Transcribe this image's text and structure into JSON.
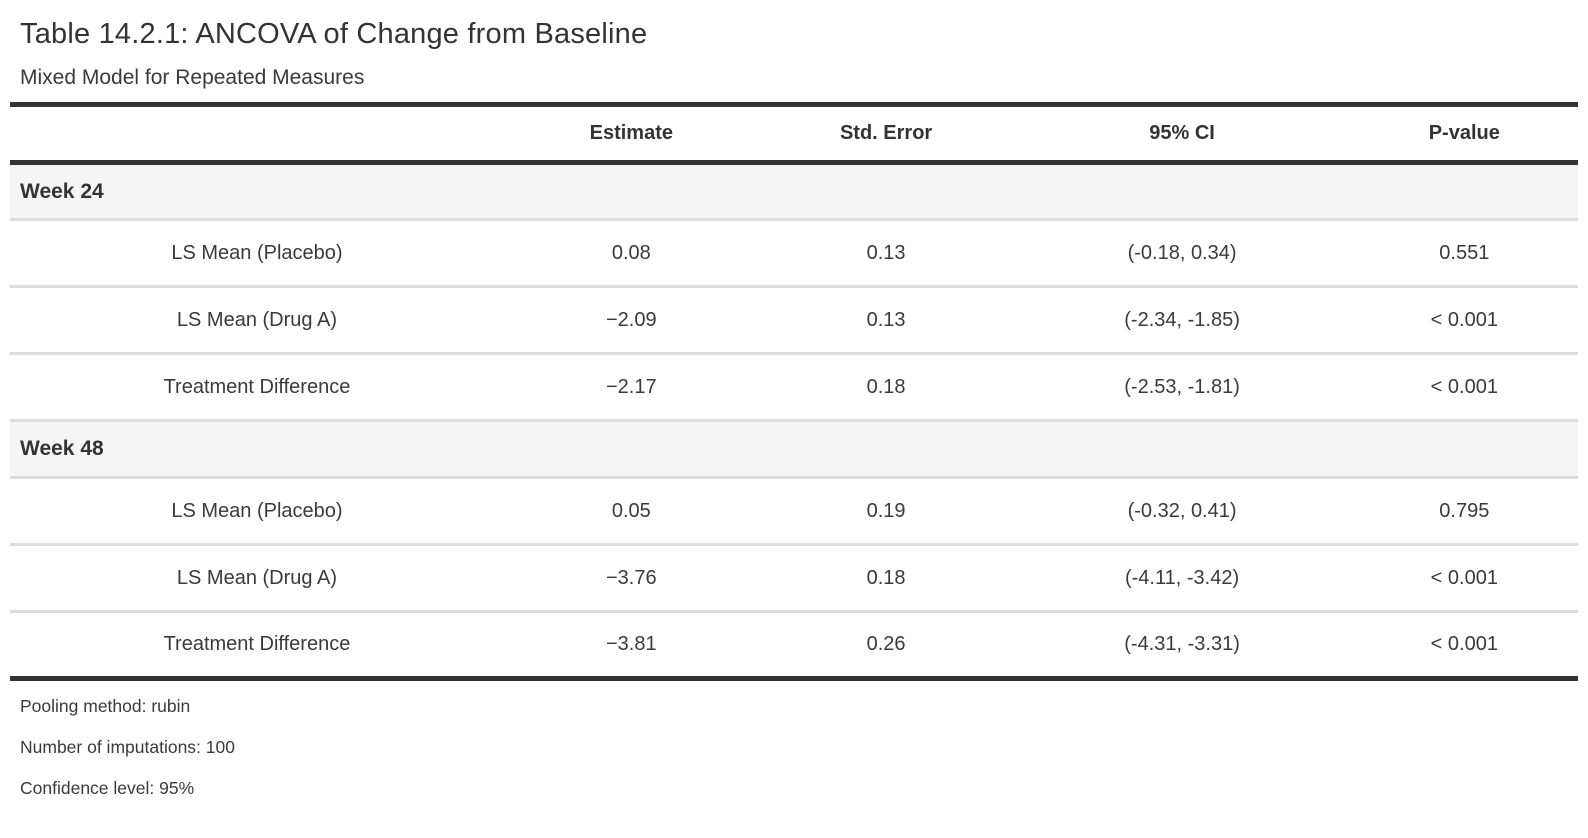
{
  "table": {
    "title": "Table 14.2.1: ANCOVA of Change from Baseline",
    "subtitle": "Mixed Model for Repeated Measures",
    "columns": [
      "",
      "Estimate",
      "Std. Error",
      "95% CI",
      "P-value"
    ],
    "groups": [
      {
        "label": "Week 24",
        "rows": [
          {
            "label": "LS Mean (Placebo)",
            "estimate": "0.08",
            "std_error": "0.13",
            "ci": "(-0.18, 0.34)",
            "p_value": "0.551"
          },
          {
            "label": "LS Mean (Drug A)",
            "estimate": "−2.09",
            "std_error": "0.13",
            "ci": "(-2.34, -1.85)",
            "p_value": "< 0.001"
          },
          {
            "label": "Treatment Difference",
            "estimate": "−2.17",
            "std_error": "0.18",
            "ci": "(-2.53, -1.81)",
            "p_value": "< 0.001"
          }
        ]
      },
      {
        "label": "Week 48",
        "rows": [
          {
            "label": "LS Mean (Placebo)",
            "estimate": "0.05",
            "std_error": "0.19",
            "ci": "(-0.32, 0.41)",
            "p_value": "0.795"
          },
          {
            "label": "LS Mean (Drug A)",
            "estimate": "−3.76",
            "std_error": "0.18",
            "ci": "(-4.11, -3.42)",
            "p_value": "< 0.001"
          },
          {
            "label": "Treatment Difference",
            "estimate": "−3.81",
            "std_error": "0.26",
            "ci": "(-4.31, -3.31)",
            "p_value": "< 0.001"
          }
        ]
      }
    ],
    "footnotes": [
      "Pooling method: rubin",
      "Number of imputations: 100",
      "Confidence level: 95%"
    ],
    "colors": {
      "text": "#363636",
      "heavy_border": "#333333",
      "light_divider": "#dcdcdc",
      "group_row_bg": "#f5f5f6"
    }
  }
}
